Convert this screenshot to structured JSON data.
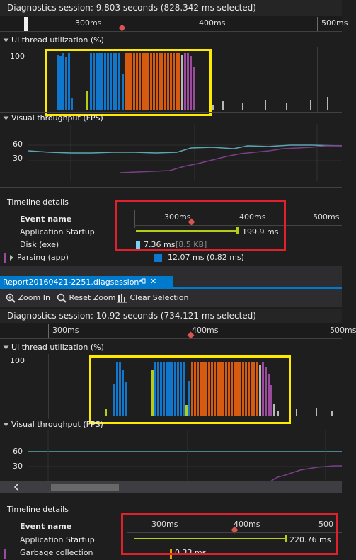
{
  "top": {
    "session_summary": "Diagnostics session: 9.803 seconds (828.342 ms selected)",
    "ruler_labels": [
      "300ms",
      "400ms",
      "500ms"
    ],
    "ui_thread_title": "UI thread utilization (%)",
    "ui_axis_label": "100",
    "visual_title": "Visual throughput (FPS)",
    "fps_axis": [
      "60",
      "30"
    ],
    "timeline_title": "Timeline details",
    "event_header": "Event name",
    "detail_ruler": [
      "300ms",
      "400ms",
      "500ms"
    ],
    "events": [
      {
        "name": "Application Startup",
        "value": "199.9 ms"
      },
      {
        "name": "Disk (exe)",
        "value": "7.36 ms",
        "extra": "[8.5 KB]"
      },
      {
        "name": "Parsing (app)",
        "value": "12.07 ms (0.82 ms)"
      }
    ]
  },
  "tab": {
    "title": "Report20160421-2251.diagsession*",
    "pin_glyph": "⊣",
    "close_glyph": "✕"
  },
  "toolbar": {
    "zoom_in": "Zoom In",
    "reset_zoom": "Reset Zoom",
    "clear_selection": "Clear Selection"
  },
  "bottom": {
    "session_summary": "Diagnostics session: 10.92 seconds (734.121 ms selected)",
    "ruler_labels": [
      "300ms",
      "400ms",
      "500ms"
    ],
    "ui_thread_title": "UI thread utilization (%)",
    "ui_axis_label": "100",
    "visual_title": "Visual throughput (FPS)",
    "fps_axis": [
      "60",
      "30"
    ],
    "timeline_title": "Timeline details",
    "event_header": "Event name",
    "detail_ruler": [
      "300ms",
      "400ms",
      "500"
    ],
    "events": [
      {
        "name": "Application Startup",
        "value": "220.76 ms"
      },
      {
        "name": "Garbage collection",
        "value": "0.33 ms"
      }
    ]
  },
  "colors": {
    "blue": "#1177cc",
    "orange": "#d65a10",
    "purple": "#9b4a9d",
    "gray": "#b8b8b8",
    "lime": "#b5cc18",
    "fps_line": "#5aa6b2",
    "fps_purple": "#7a3f88",
    "highlight_yellow": "#ffe900",
    "highlight_red": "#e0202a"
  }
}
